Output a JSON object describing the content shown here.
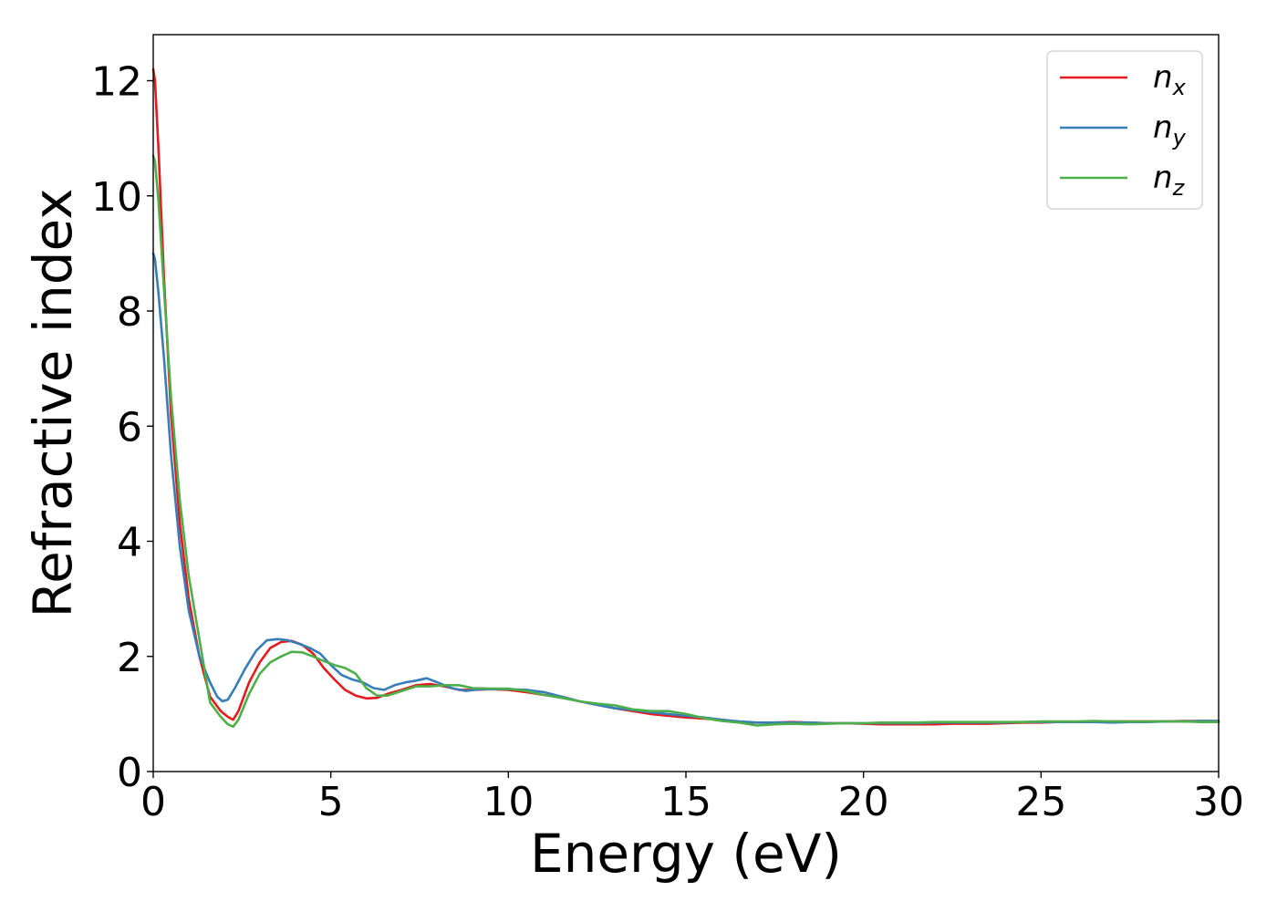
{
  "chart_data": {
    "type": "line",
    "title": "",
    "xlabel": "Energy (eV)",
    "ylabel": "Refractive index",
    "xlim": [
      0,
      30
    ],
    "ylim": [
      0,
      12.8
    ],
    "xticks": [
      0,
      5,
      10,
      15,
      20,
      25,
      30
    ],
    "xtick_labels": [
      "0",
      "5",
      "10",
      "15",
      "20",
      "25",
      "30"
    ],
    "yticks": [
      0,
      2,
      4,
      6,
      8,
      10,
      12
    ],
    "ytick_labels": [
      "0",
      "2",
      "4",
      "6",
      "8",
      "10",
      "12"
    ],
    "grid": false,
    "legend_position": "top-right",
    "series": [
      {
        "name": "n",
        "subscript": "x",
        "color": "#e41a1c",
        "x": [
          0,
          0.05,
          0.15,
          0.3,
          0.5,
          0.75,
          1.0,
          1.3,
          1.6,
          1.9,
          2.1,
          2.25,
          2.4,
          2.7,
          3.0,
          3.3,
          3.6,
          3.9,
          4.2,
          4.5,
          4.8,
          5.1,
          5.4,
          5.7,
          6.0,
          6.3,
          6.6,
          7.0,
          7.4,
          7.8,
          8.2,
          8.6,
          9.0,
          9.5,
          10.0,
          10.5,
          11.0,
          11.5,
          12.0,
          12.5,
          13.0,
          13.5,
          14.0,
          14.5,
          15.0,
          15.5,
          16.0,
          16.5,
          17.0,
          17.5,
          18.0,
          18.5,
          19.0,
          19.5,
          20.0,
          20.5,
          21.0,
          21.5,
          22.0,
          22.5,
          23.0,
          23.5,
          24.0,
          24.5,
          25.0,
          25.5,
          26.0,
          26.5,
          27.0,
          27.5,
          28.0,
          28.5,
          29.0,
          29.5,
          30.0
        ],
        "y": [
          12.2,
          12.0,
          10.8,
          8.6,
          6.2,
          4.3,
          3.0,
          2.0,
          1.3,
          1.05,
          0.95,
          0.9,
          1.05,
          1.55,
          1.9,
          2.15,
          2.25,
          2.27,
          2.2,
          2.05,
          1.8,
          1.6,
          1.42,
          1.32,
          1.27,
          1.28,
          1.35,
          1.42,
          1.5,
          1.52,
          1.48,
          1.42,
          1.42,
          1.43,
          1.42,
          1.38,
          1.33,
          1.3,
          1.22,
          1.16,
          1.1,
          1.05,
          1.0,
          0.97,
          0.94,
          0.92,
          0.9,
          0.86,
          0.85,
          0.85,
          0.86,
          0.85,
          0.84,
          0.84,
          0.83,
          0.82,
          0.82,
          0.82,
          0.82,
          0.83,
          0.83,
          0.83,
          0.84,
          0.85,
          0.85,
          0.86,
          0.86,
          0.86,
          0.87,
          0.87,
          0.87,
          0.87,
          0.88,
          0.88,
          0.88
        ]
      },
      {
        "name": "n",
        "subscript": "y",
        "color": "#377eb8",
        "x": [
          0,
          0.05,
          0.15,
          0.3,
          0.5,
          0.75,
          1.0,
          1.3,
          1.6,
          1.8,
          1.95,
          2.1,
          2.3,
          2.6,
          2.9,
          3.2,
          3.5,
          3.8,
          4.1,
          4.4,
          4.7,
          5.0,
          5.3,
          5.6,
          5.9,
          6.2,
          6.5,
          6.8,
          7.1,
          7.4,
          7.7,
          8.0,
          8.4,
          8.8,
          9.2,
          9.6,
          10.0,
          10.5,
          11.0,
          11.5,
          12.0,
          12.5,
          13.0,
          13.5,
          14.0,
          14.5,
          15.0,
          15.5,
          16.0,
          16.5,
          17.0,
          17.5,
          18.0,
          18.5,
          19.0,
          19.5,
          20.0,
          20.5,
          21.0,
          21.5,
          22.0,
          22.5,
          23.0,
          23.5,
          24.0,
          24.5,
          25.0,
          25.5,
          26.0,
          26.5,
          27.0,
          27.5,
          28.0,
          28.5,
          29.0,
          29.5,
          30.0
        ],
        "y": [
          9.0,
          8.9,
          8.3,
          7.2,
          5.5,
          3.9,
          2.8,
          2.0,
          1.55,
          1.3,
          1.22,
          1.25,
          1.45,
          1.8,
          2.1,
          2.28,
          2.3,
          2.28,
          2.22,
          2.15,
          2.05,
          1.85,
          1.68,
          1.6,
          1.55,
          1.45,
          1.42,
          1.5,
          1.55,
          1.58,
          1.62,
          1.55,
          1.45,
          1.4,
          1.43,
          1.43,
          1.43,
          1.42,
          1.38,
          1.3,
          1.22,
          1.16,
          1.1,
          1.07,
          1.03,
          1.0,
          0.97,
          0.94,
          0.9,
          0.87,
          0.85,
          0.85,
          0.85,
          0.85,
          0.84,
          0.84,
          0.84,
          0.84,
          0.84,
          0.84,
          0.85,
          0.85,
          0.85,
          0.85,
          0.85,
          0.86,
          0.86,
          0.86,
          0.86,
          0.86,
          0.85,
          0.86,
          0.86,
          0.87,
          0.87,
          0.88,
          0.88
        ]
      },
      {
        "name": "n",
        "subscript": "z",
        "color": "#4daf4a",
        "x": [
          0,
          0.05,
          0.15,
          0.3,
          0.5,
          0.75,
          1.0,
          1.3,
          1.6,
          1.9,
          2.1,
          2.25,
          2.4,
          2.7,
          3.0,
          3.3,
          3.6,
          3.9,
          4.2,
          4.5,
          4.8,
          5.1,
          5.4,
          5.7,
          6.0,
          6.3,
          6.6,
          7.0,
          7.4,
          7.8,
          8.2,
          8.6,
          9.0,
          9.5,
          10.0,
          10.5,
          11.0,
          11.5,
          12.0,
          12.5,
          13.0,
          13.5,
          14.0,
          14.5,
          15.0,
          15.5,
          16.0,
          16.5,
          17.0,
          17.5,
          18.0,
          18.5,
          19.0,
          19.5,
          20.0,
          20.5,
          21.0,
          21.5,
          22.0,
          22.5,
          23.0,
          23.5,
          24.0,
          24.5,
          25.0,
          25.5,
          26.0,
          26.5,
          27.0,
          27.5,
          28.0,
          28.5,
          29.0,
          29.5,
          30.0
        ],
        "y": [
          10.7,
          10.6,
          9.9,
          8.4,
          6.5,
          4.7,
          3.4,
          2.3,
          1.2,
          0.95,
          0.82,
          0.78,
          0.9,
          1.35,
          1.7,
          1.9,
          2.0,
          2.08,
          2.07,
          2.0,
          1.92,
          1.85,
          1.8,
          1.7,
          1.45,
          1.32,
          1.32,
          1.4,
          1.48,
          1.48,
          1.5,
          1.5,
          1.45,
          1.44,
          1.44,
          1.4,
          1.33,
          1.28,
          1.22,
          1.18,
          1.15,
          1.08,
          1.05,
          1.05,
          1.0,
          0.93,
          0.88,
          0.85,
          0.8,
          0.82,
          0.83,
          0.82,
          0.83,
          0.84,
          0.84,
          0.85,
          0.85,
          0.85,
          0.86,
          0.86,
          0.86,
          0.86,
          0.86,
          0.86,
          0.87,
          0.87,
          0.87,
          0.88,
          0.87,
          0.87,
          0.87,
          0.87,
          0.87,
          0.86,
          0.86
        ]
      }
    ]
  }
}
